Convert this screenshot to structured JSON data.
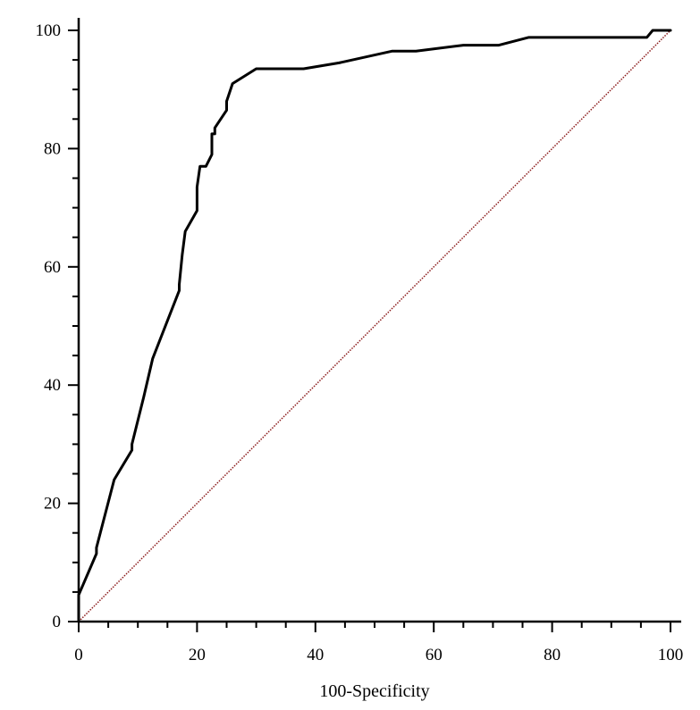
{
  "chart_data": {
    "type": "line",
    "title": "",
    "xlabel": "100-Specificity",
    "ylabel": "",
    "xlim": [
      0,
      100
    ],
    "ylim": [
      0,
      100
    ],
    "x_ticks": [
      "0",
      "20",
      "40",
      "60",
      "80",
      "100"
    ],
    "y_ticks": [
      "0",
      "20",
      "40",
      "60",
      "80",
      "100"
    ],
    "grid": false,
    "series": [
      {
        "color": "#000000",
        "style": "solid-step",
        "x": [
          0,
          0,
          3,
          3,
          6,
          9,
          9,
          11,
          12.5,
          17,
          17,
          17.5,
          18,
          20,
          20,
          20.5,
          21.5,
          21.5,
          22.5,
          22.5,
          23,
          23,
          25,
          25,
          26,
          30,
          38,
          44,
          53,
          57,
          65,
          71,
          76,
          96,
          97,
          99,
          100
        ],
        "y": [
          0,
          4.5,
          11.5,
          12.5,
          24,
          29,
          30,
          38,
          44.5,
          56,
          57,
          62,
          66,
          69.5,
          73.5,
          77,
          77,
          77,
          79,
          82.5,
          82.5,
          83.5,
          86.5,
          88,
          91,
          93.5,
          93.5,
          94.5,
          96.5,
          96.5,
          97.5,
          97.5,
          98.8,
          98.8,
          100,
          100,
          100
        ]
      },
      {
        "color": "#8b1a1a",
        "style": "dotted",
        "x": [
          0,
          100
        ],
        "y": [
          0,
          100
        ]
      }
    ]
  }
}
